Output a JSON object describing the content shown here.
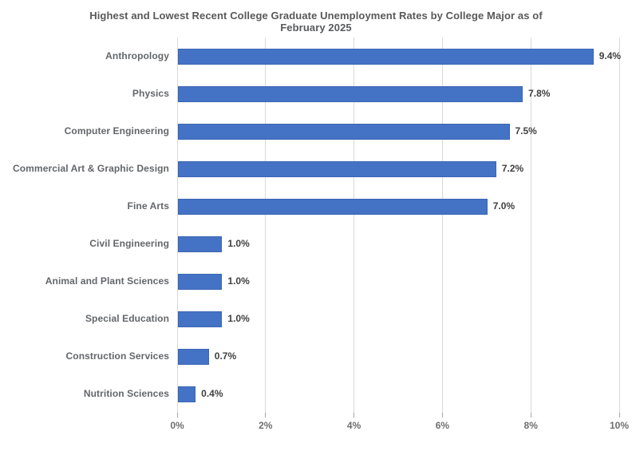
{
  "title_lines": [
    "Highest and Lowest Recent College Graduate Unemployment Rates by College Major as of",
    "February 2025"
  ],
  "colors": {
    "bar": "#4472c4",
    "bar_border": "#3a66b5",
    "gridline": "#d9d9d9",
    "tick_mark": "#a6a6a6",
    "title_text": "#58595b",
    "category_text": "#63666a",
    "value_text": "#3f3f3f",
    "tick_label_text": "#6e6e6e",
    "background": "#ffffff"
  },
  "chart_data": {
    "type": "bar",
    "orientation": "horizontal",
    "title": "Highest and Lowest Recent College Graduate Unemployment Rates by College Major as of February 2025",
    "categories": [
      "Anthropology",
      "Physics",
      "Computer Engineering",
      "Commercial Art & Graphic Design",
      "Fine Arts",
      "Civil Engineering",
      "Animal and Plant Sciences",
      "Special Education",
      "Construction Services",
      "Nutrition Sciences"
    ],
    "values": [
      9.4,
      7.8,
      7.5,
      7.2,
      7.0,
      1.0,
      1.0,
      1.0,
      0.7,
      0.4
    ],
    "value_labels": [
      "9.4%",
      "7.8%",
      "7.5%",
      "7.2%",
      "7.0%",
      "1.0%",
      "1.0%",
      "1.0%",
      "0.7%",
      "0.4%"
    ],
    "xlabel": "",
    "ylabel": "",
    "xlim": [
      0,
      10
    ],
    "xticks": [
      0,
      2,
      4,
      6,
      8,
      10
    ],
    "xtick_labels": [
      "0%",
      "2%",
      "4%",
      "6%",
      "8%",
      "10%"
    ],
    "grid": true,
    "legend": false
  }
}
